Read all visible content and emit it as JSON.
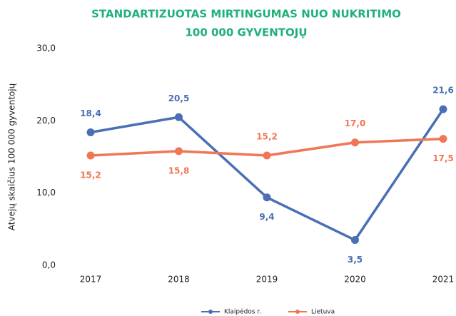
{
  "chart_data": {
    "type": "line",
    "title": [
      "STANDARTIZUOTAS MIRTINGUMAS NUO NUKRITIMO",
      "100 000 GYVENTOJŲ"
    ],
    "ylabel": "Atvejų skaičius 100 000 gyventojų",
    "categories": [
      "2017",
      "2018",
      "2019",
      "2020",
      "2021"
    ],
    "series": [
      {
        "name": "Klaipėdos r.",
        "color": "#4a6fb5",
        "values": [
          18.4,
          20.5,
          9.4,
          3.5,
          21.6
        ],
        "value_labels": [
          "18,4",
          "20,5",
          "9,4",
          "3,5",
          "21,6"
        ]
      },
      {
        "name": "Lietuva",
        "color": "#f07654",
        "values": [
          15.2,
          15.8,
          15.2,
          17.0,
          17.5
        ],
        "value_labels": [
          "15,2",
          "15,8",
          "15,2",
          "17,0",
          "17,5"
        ]
      }
    ],
    "ylim": [
      0,
      30
    ],
    "yticks": [
      {
        "value": 0,
        "label": "0,0"
      },
      {
        "value": 10,
        "label": "10,0"
      },
      {
        "value": 20,
        "label": "20,0"
      },
      {
        "value": 30,
        "label": "30,0"
      }
    ],
    "grid": false,
    "legend": "bottom"
  }
}
